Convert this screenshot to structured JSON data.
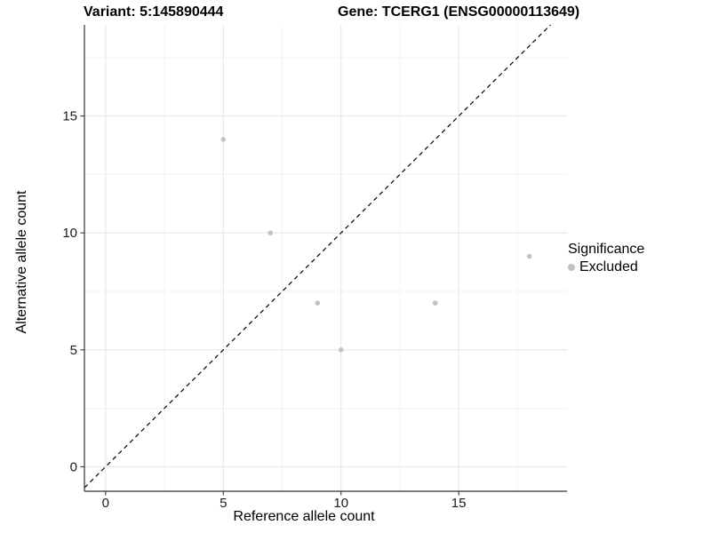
{
  "chart_data": {
    "type": "scatter",
    "titles": {
      "left": "Variant: 5:145890444",
      "right": "Gene: TCERG1 (ENSG00000113649)"
    },
    "xlabel": "Reference allele count",
    "ylabel": "Alternative allele count",
    "xticks": [
      0,
      5,
      10,
      15
    ],
    "yticks": [
      0,
      5,
      10,
      15
    ],
    "xminor": [
      2.5,
      7.5,
      12.5,
      17.5
    ],
    "yminor": [
      2.5,
      7.5,
      12.5,
      17.5
    ],
    "xlim": [
      -0.9,
      19.6
    ],
    "ylim": [
      -1.05,
      18.9
    ],
    "grid": true,
    "legend_position": "right",
    "series": [
      {
        "name": "Excluded",
        "color": "#c2c2c2",
        "points": [
          {
            "x": 5,
            "y": 14
          },
          {
            "x": 7,
            "y": 10
          },
          {
            "x": 9,
            "y": 7
          },
          {
            "x": 10,
            "y": 5
          },
          {
            "x": 14,
            "y": 7
          },
          {
            "x": 18,
            "y": 9
          }
        ]
      }
    ],
    "identity_line": {
      "style": "dashed",
      "color": "#000000"
    },
    "legend": {
      "title": "Significance",
      "entries": [
        {
          "label": "Excluded",
          "color": "#c2c2c2"
        }
      ]
    },
    "colors": {
      "background": "#ffffff",
      "grid_major": "#e4e4e4",
      "grid_minor": "#f2f2f2",
      "axis_line": "#333333",
      "point": "#c2c2c2",
      "text": "#000000"
    }
  }
}
